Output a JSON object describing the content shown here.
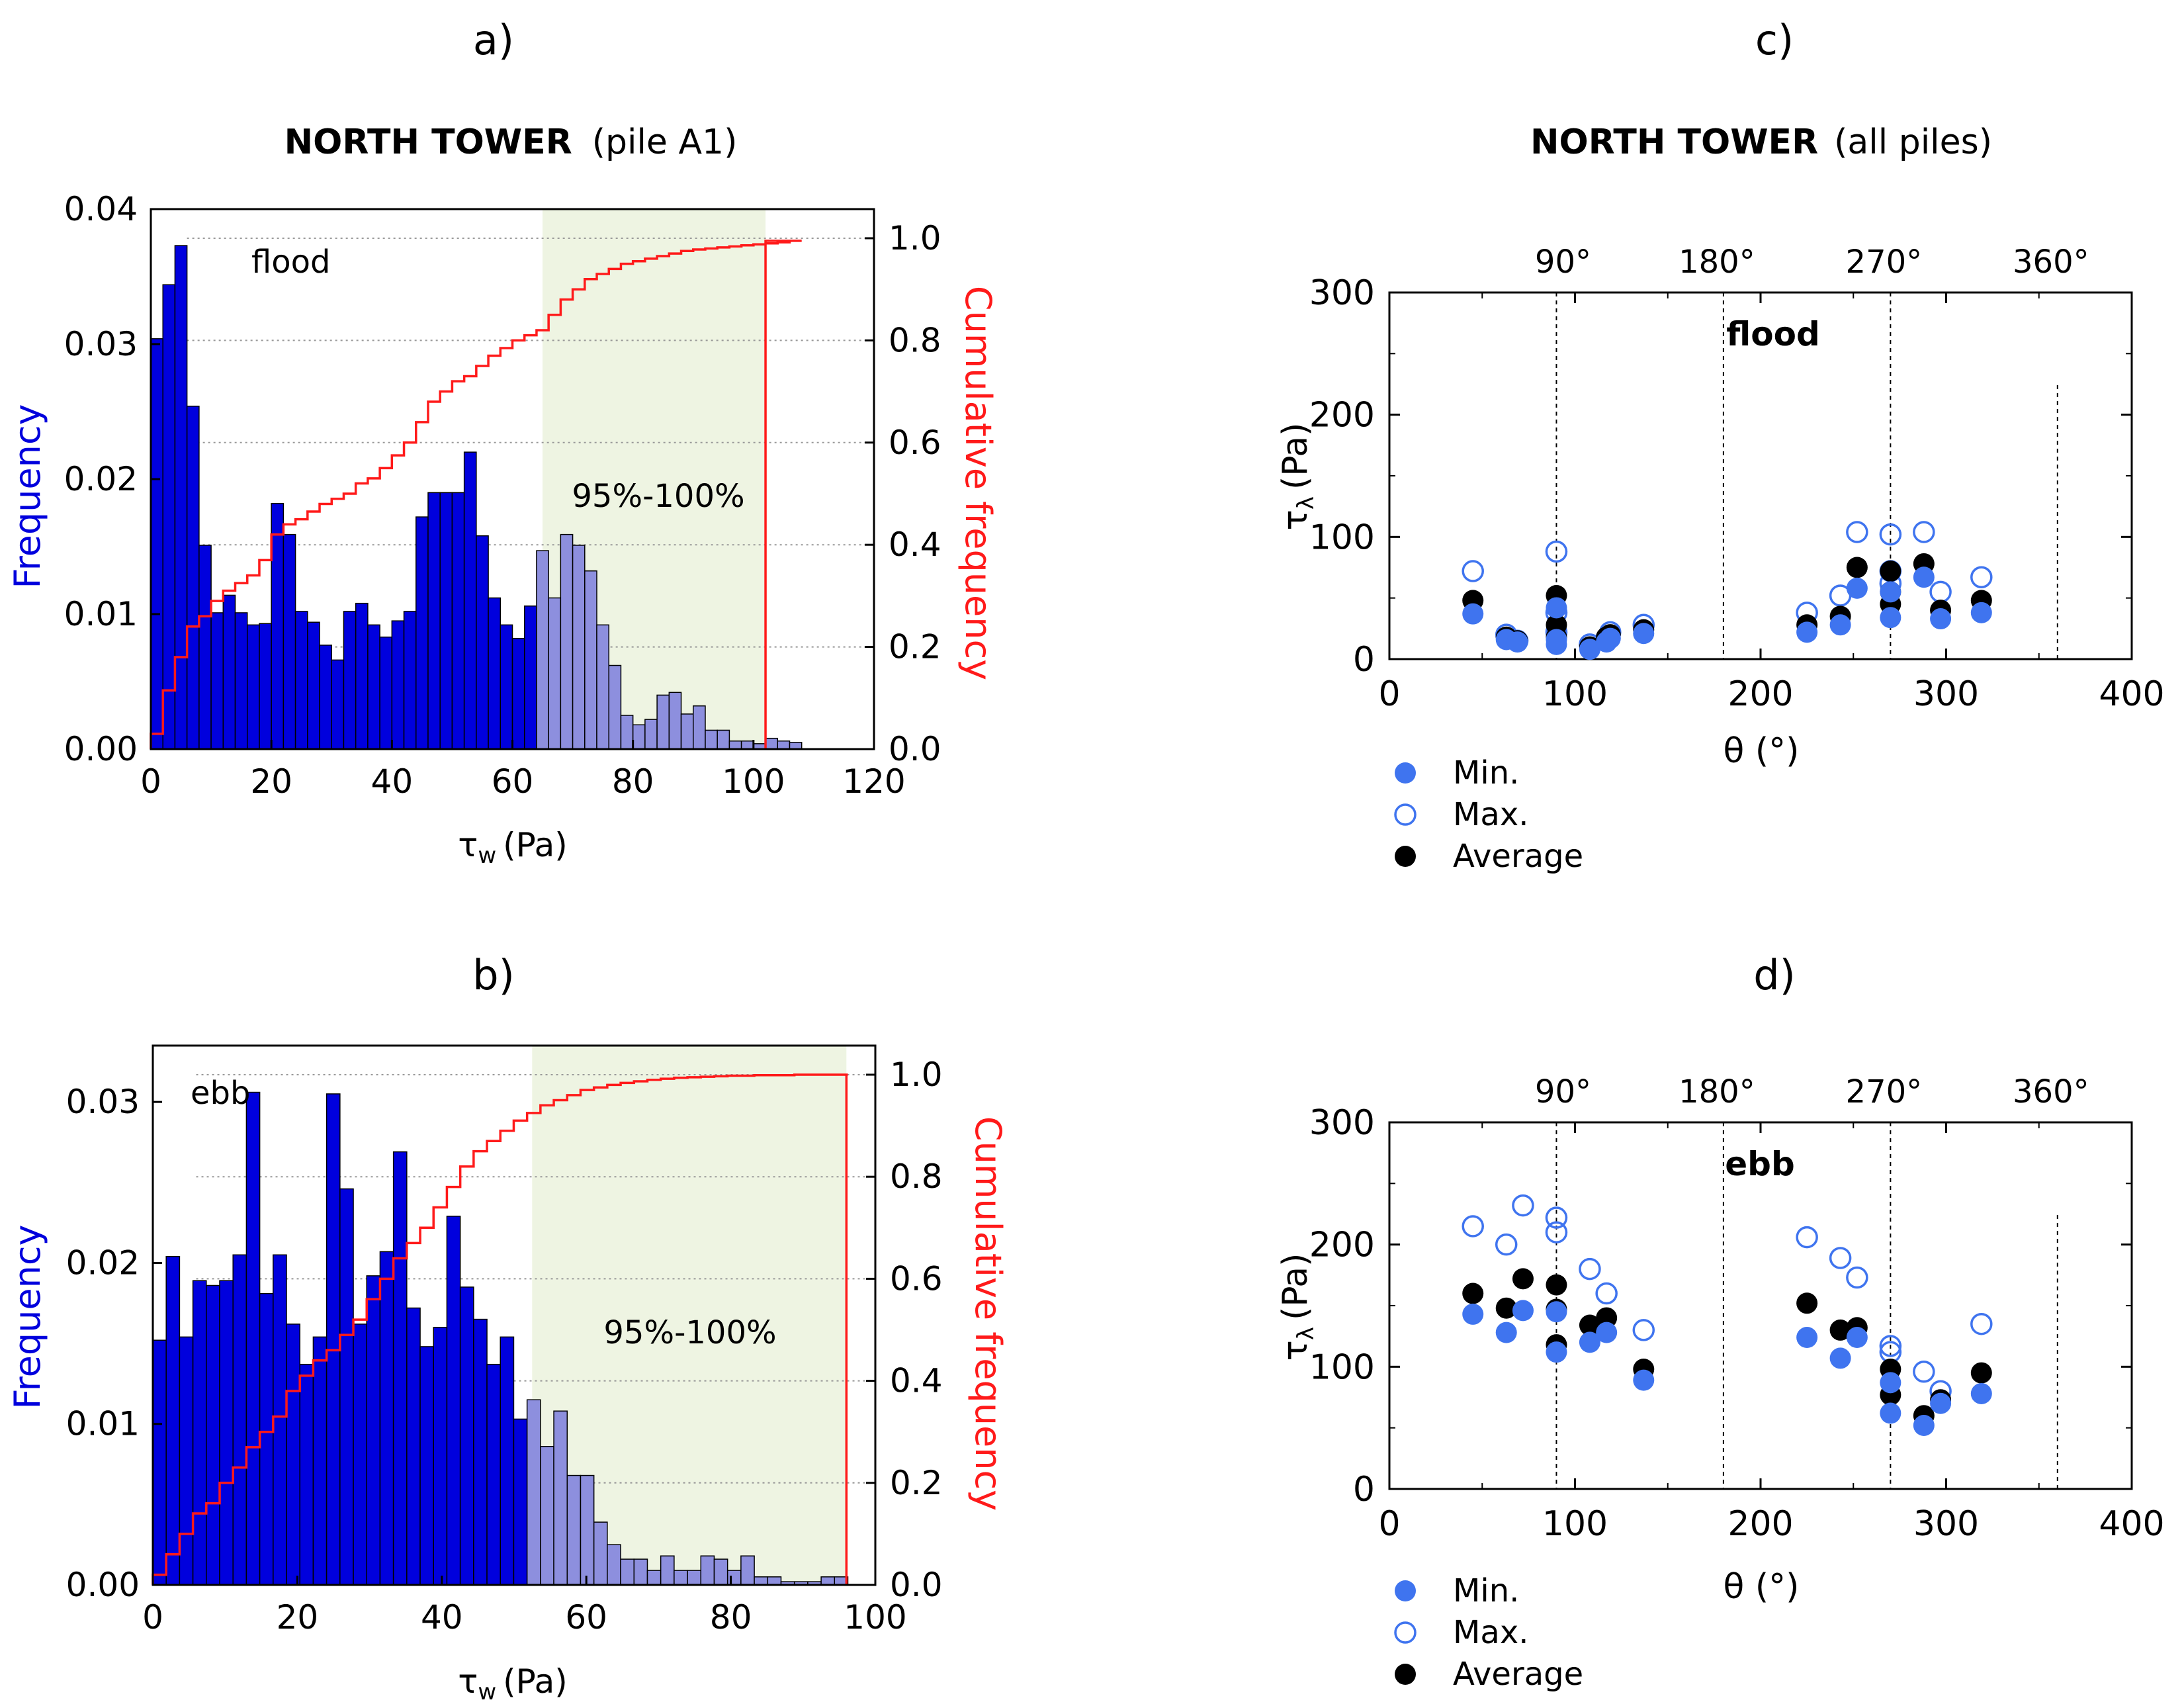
{
  "panel_a_label": "a)",
  "panel_b_label": "b)",
  "panel_c_label": "c)",
  "panel_d_label": "d)",
  "colors": {
    "bar_blue": "#0000dd",
    "bar_light": "#8d8fde",
    "cdf_red": "#ff1a1a",
    "shade": "#eef4e2",
    "point_blue": "#3f74ef",
    "point_black": "#000000",
    "axis": "#000000",
    "grid": "#999999"
  },
  "chart_data": [
    {
      "id": "a",
      "type": "bar",
      "title_bold": "NORTH TOWER",
      "title_rest": "(pile A1)",
      "annotation": "flood",
      "band_label": "95%-100%",
      "xlabel_sym": "τ",
      "xlabel_sub": "w",
      "xlabel_unit": "(Pa)",
      "ylabel": "Frequency",
      "y2label": "Cumulative frequency",
      "xlim": [
        0,
        120
      ],
      "ylim": [
        0,
        0.04
      ],
      "y2lim": [
        0,
        1
      ],
      "xticks": [
        "0",
        "20",
        "40",
        "60",
        "80",
        "100",
        "120"
      ],
      "yticks": [
        "0.00",
        "0.01",
        "0.02",
        "0.03",
        "0.04"
      ],
      "y2ticks": [
        "0.0",
        "0.2",
        "0.4",
        "0.6",
        "0.8",
        "1.0"
      ],
      "bin_width": 2,
      "bin_start": 0,
      "band_start": 65,
      "band_end": 102,
      "values": [
        0.0304,
        0.0344,
        0.0373,
        0.0254,
        0.0151,
        0.0101,
        0.0114,
        0.0101,
        0.0092,
        0.0093,
        0.0182,
        0.0159,
        0.0102,
        0.0094,
        0.0077,
        0.0066,
        0.0102,
        0.0108,
        0.0092,
        0.0083,
        0.0095,
        0.0102,
        0.0172,
        0.019,
        0.019,
        0.019,
        0.022,
        0.0158,
        0.0112,
        0.0092,
        0.0082,
        0.0106,
        0.0147,
        0.0112,
        0.0159,
        0.0151,
        0.0132,
        0.0092,
        0.0062,
        0.0025,
        0.0018,
        0.0022,
        0.004,
        0.0042,
        0.0026,
        0.0032,
        0.0014,
        0.0014,
        0.0006,
        0.0006,
        0.0004,
        0.0008,
        0.0006,
        0.0005
      ],
      "cumulative": [
        0.03,
        0.115,
        0.18,
        0.24,
        0.26,
        0.29,
        0.31,
        0.325,
        0.34,
        0.37,
        0.42,
        0.44,
        0.45,
        0.465,
        0.48,
        0.49,
        0.5,
        0.52,
        0.53,
        0.55,
        0.575,
        0.6,
        0.64,
        0.68,
        0.7,
        0.72,
        0.73,
        0.75,
        0.77,
        0.785,
        0.8,
        0.81,
        0.82,
        0.85,
        0.88,
        0.9,
        0.92,
        0.93,
        0.94,
        0.95,
        0.955,
        0.96,
        0.965,
        0.97,
        0.975,
        0.978,
        0.98,
        0.982,
        0.984,
        0.986,
        0.988,
        0.99,
        0.992,
        0.995
      ]
    },
    {
      "id": "b",
      "type": "bar",
      "annotation": "ebb",
      "band_label": "95%-100%",
      "xlabel_sym": "τ",
      "xlabel_sub": "w",
      "xlabel_unit": "(Pa)",
      "ylabel": "Frequency",
      "y2label": "Cumulative frequency",
      "xlim": [
        0,
        100
      ],
      "ylim": [
        0,
        0.0335
      ],
      "y2lim": [
        0,
        1
      ],
      "xticks": [
        "0",
        "20",
        "40",
        "60",
        "80",
        "100"
      ],
      "yticks": [
        "0.00",
        "0.01",
        "0.02",
        "0.03"
      ],
      "y2ticks": [
        "0.0",
        "0.2",
        "0.4",
        "0.6",
        "0.8",
        "1.0"
      ],
      "bin_width": 1.85,
      "bin_start": 0,
      "band_start": 52.5,
      "band_end": 96,
      "values": [
        0.0152,
        0.0204,
        0.0154,
        0.0189,
        0.0186,
        0.0189,
        0.0205,
        0.0306,
        0.0181,
        0.0205,
        0.0162,
        0.0137,
        0.0154,
        0.0305,
        0.0246,
        0.0162,
        0.0192,
        0.0207,
        0.0269,
        0.0172,
        0.0148,
        0.016,
        0.0229,
        0.0185,
        0.0165,
        0.0137,
        0.0154,
        0.0103,
        0.0115,
        0.0086,
        0.0108,
        0.0068,
        0.0068,
        0.0039,
        0.0025,
        0.0016,
        0.0016,
        0.0009,
        0.0018,
        0.0009,
        0.0009,
        0.0018,
        0.0016,
        0.0009,
        0.0018,
        0.0005,
        0.0005,
        0.0002,
        0.0002,
        0.0002,
        0.0005,
        0.0005
      ],
      "cumulative": [
        0.02,
        0.06,
        0.1,
        0.14,
        0.16,
        0.2,
        0.23,
        0.27,
        0.3,
        0.33,
        0.38,
        0.41,
        0.44,
        0.46,
        0.49,
        0.52,
        0.56,
        0.6,
        0.64,
        0.67,
        0.7,
        0.74,
        0.78,
        0.82,
        0.85,
        0.87,
        0.89,
        0.91,
        0.925,
        0.94,
        0.95,
        0.96,
        0.97,
        0.975,
        0.98,
        0.984,
        0.987,
        0.99,
        0.992,
        0.994,
        0.995,
        0.996,
        0.997,
        0.998,
        0.998,
        0.999,
        0.999,
        0.999,
        1.0,
        1.0,
        1.0,
        1.0
      ]
    },
    {
      "id": "c",
      "type": "scatter",
      "title_bold": "NORTH TOWER",
      "title_rest": "(all piles)",
      "annotation": "flood",
      "xlabel": "θ (°)",
      "ylabel_sym": "τ",
      "ylabel_sub": "λ",
      "ylabel_unit": "(Pa)",
      "xlim": [
        0,
        400
      ],
      "ylim": [
        0,
        300
      ],
      "xticks": [
        "0",
        "100",
        "200",
        "300",
        "400"
      ],
      "yticks": [
        "0",
        "100",
        "200",
        "300"
      ],
      "top_ticks": [
        "90°",
        "180°",
        "270°",
        "360°"
      ],
      "vlines": [
        90,
        180,
        270,
        360
      ],
      "legend": [
        "Min.",
        "Max.",
        "Average"
      ],
      "series": [
        {
          "name": "Max.",
          "points": [
            [
              45,
              72
            ],
            [
              63,
              20
            ],
            [
              69,
              15
            ],
            [
              90,
              88
            ],
            [
              90,
              38
            ],
            [
              90,
              22
            ],
            [
              108,
              12
            ],
            [
              117,
              17
            ],
            [
              119,
              22
            ],
            [
              137,
              28
            ],
            [
              225,
              38
            ],
            [
              243,
              52
            ],
            [
              252,
              104
            ],
            [
              270,
              102
            ],
            [
              270,
              72
            ],
            [
              270,
              62
            ],
            [
              288,
              104
            ],
            [
              297,
              55
            ],
            [
              319,
              67
            ]
          ]
        },
        {
          "name": "Average",
          "points": [
            [
              45,
              48
            ],
            [
              63,
              18
            ],
            [
              69,
              15
            ],
            [
              90,
              52
            ],
            [
              90,
              28
            ],
            [
              90,
              18
            ],
            [
              108,
              10
            ],
            [
              117,
              18
            ],
            [
              119,
              20
            ],
            [
              137,
              24
            ],
            [
              225,
              28
            ],
            [
              243,
              35
            ],
            [
              252,
              75
            ],
            [
              270,
              72
            ],
            [
              270,
              45
            ],
            [
              270,
              55
            ],
            [
              288,
              78
            ],
            [
              297,
              40
            ],
            [
              319,
              48
            ]
          ]
        },
        {
          "name": "Min.",
          "points": [
            [
              45,
              37
            ],
            [
              63,
              16
            ],
            [
              69,
              14
            ],
            [
              90,
              42
            ],
            [
              90,
              12
            ],
            [
              90,
              16
            ],
            [
              108,
              8
            ],
            [
              117,
              14
            ],
            [
              119,
              17
            ],
            [
              137,
              21
            ],
            [
              225,
              22
            ],
            [
              243,
              28
            ],
            [
              252,
              58
            ],
            [
              270,
              34
            ],
            [
              270,
              55
            ],
            [
              288,
              67
            ],
            [
              297,
              33
            ],
            [
              319,
              38
            ]
          ]
        }
      ]
    },
    {
      "id": "d",
      "type": "scatter",
      "annotation": "ebb",
      "xlabel": "θ (°)",
      "ylabel_sym": "τ",
      "ylabel_sub": "λ",
      "ylabel_unit": "(Pa)",
      "xlim": [
        0,
        400
      ],
      "ylim": [
        0,
        300
      ],
      "xticks": [
        "0",
        "100",
        "200",
        "300",
        "400"
      ],
      "yticks": [
        "0",
        "100",
        "200",
        "300"
      ],
      "top_ticks": [
        "90°",
        "180°",
        "270°",
        "360°"
      ],
      "vlines": [
        90,
        180,
        270,
        360
      ],
      "legend": [
        "Min.",
        "Max.",
        "Average"
      ],
      "series": [
        {
          "name": "Max.",
          "points": [
            [
              45,
              215
            ],
            [
              63,
              200
            ],
            [
              72,
              232
            ],
            [
              90,
              222
            ],
            [
              90,
              210
            ],
            [
              108,
              180
            ],
            [
              117,
              160
            ],
            [
              137,
              130
            ],
            [
              225,
              206
            ],
            [
              243,
              189
            ],
            [
              252,
              173
            ],
            [
              270,
              117
            ],
            [
              270,
              112
            ],
            [
              288,
              96
            ],
            [
              297,
              80
            ],
            [
              319,
              135
            ]
          ]
        },
        {
          "name": "Average",
          "points": [
            [
              45,
              160
            ],
            [
              63,
              148
            ],
            [
              72,
              172
            ],
            [
              90,
              167
            ],
            [
              90,
              147
            ],
            [
              90,
              118
            ],
            [
              108,
              134
            ],
            [
              117,
              140
            ],
            [
              137,
              98
            ],
            [
              225,
              152
            ],
            [
              243,
              130
            ],
            [
              252,
              132
            ],
            [
              270,
              98
            ],
            [
              270,
              77
            ],
            [
              288,
              60
            ],
            [
              297,
              73
            ],
            [
              319,
              95
            ]
          ]
        },
        {
          "name": "Min.",
          "points": [
            [
              45,
              143
            ],
            [
              63,
              128
            ],
            [
              72,
              146
            ],
            [
              90,
              145
            ],
            [
              90,
              112
            ],
            [
              108,
              120
            ],
            [
              117,
              128
            ],
            [
              137,
              89
            ],
            [
              225,
              124
            ],
            [
              243,
              107
            ],
            [
              252,
              124
            ],
            [
              270,
              87
            ],
            [
              270,
              62
            ],
            [
              288,
              52
            ],
            [
              297,
              70
            ],
            [
              319,
              78
            ]
          ]
        }
      ]
    }
  ]
}
